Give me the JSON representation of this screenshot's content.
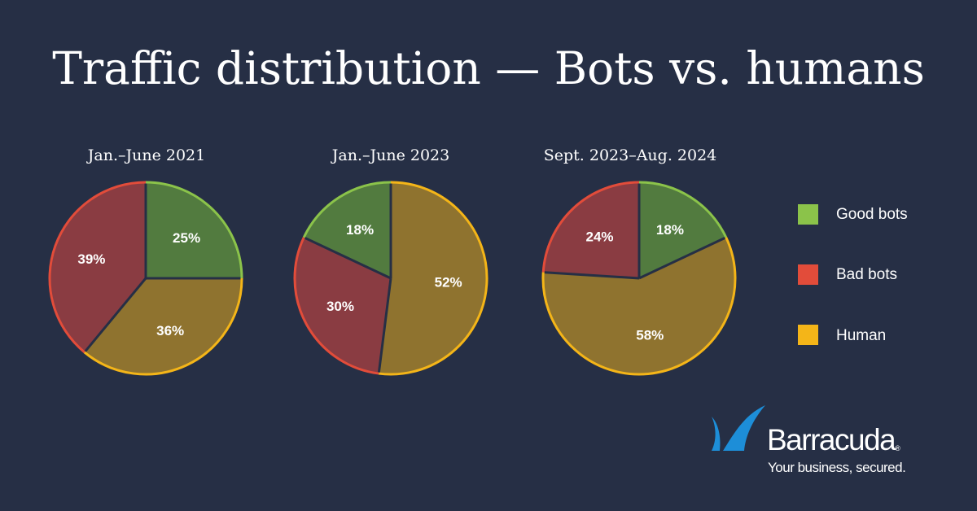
{
  "title": "Traffic distribution — Bots vs. humans",
  "colors": {
    "background": "#262f45",
    "good_bots_fill": "#527b3f",
    "good_bots_stroke": "#8bc34a",
    "bad_bots_fill": "#8a3c42",
    "bad_bots_stroke": "#e24c3a",
    "human_fill": "#8f732f",
    "human_stroke": "#f4b518",
    "divider": "#262f45",
    "logo_blue": "#1d8ed8"
  },
  "chart_data": [
    {
      "type": "pie",
      "title": "Jan.–June 2021",
      "slices": [
        {
          "key": "good",
          "label": "Good bots",
          "value": 25,
          "display": "25%"
        },
        {
          "key": "human",
          "label": "Human",
          "value": 36,
          "display": "36%"
        },
        {
          "key": "bad",
          "label": "Bad bots",
          "value": 39,
          "display": "39%"
        }
      ]
    },
    {
      "type": "pie",
      "title": "Jan.–June 2023",
      "slices": [
        {
          "key": "human",
          "label": "Human",
          "value": 52,
          "display": "52%"
        },
        {
          "key": "bad",
          "label": "Bad bots",
          "value": 30,
          "display": "30%"
        },
        {
          "key": "good",
          "label": "Good bots",
          "value": 18,
          "display": "18%"
        }
      ]
    },
    {
      "type": "pie",
      "title": "Sept. 2023–Aug. 2024",
      "slices": [
        {
          "key": "good",
          "label": "Good bots",
          "value": 18,
          "display": "18%"
        },
        {
          "key": "human",
          "label": "Human",
          "value": 58,
          "display": "58%"
        },
        {
          "key": "bad",
          "label": "Bad bots",
          "value": 24,
          "display": "24%"
        }
      ]
    }
  ],
  "legend": [
    {
      "key": "good",
      "label": "Good bots"
    },
    {
      "key": "bad",
      "label": "Bad bots"
    },
    {
      "key": "human",
      "label": "Human"
    }
  ],
  "logo": {
    "name": "Barracuda",
    "registered": "®",
    "tagline": "Your business, secured."
  }
}
